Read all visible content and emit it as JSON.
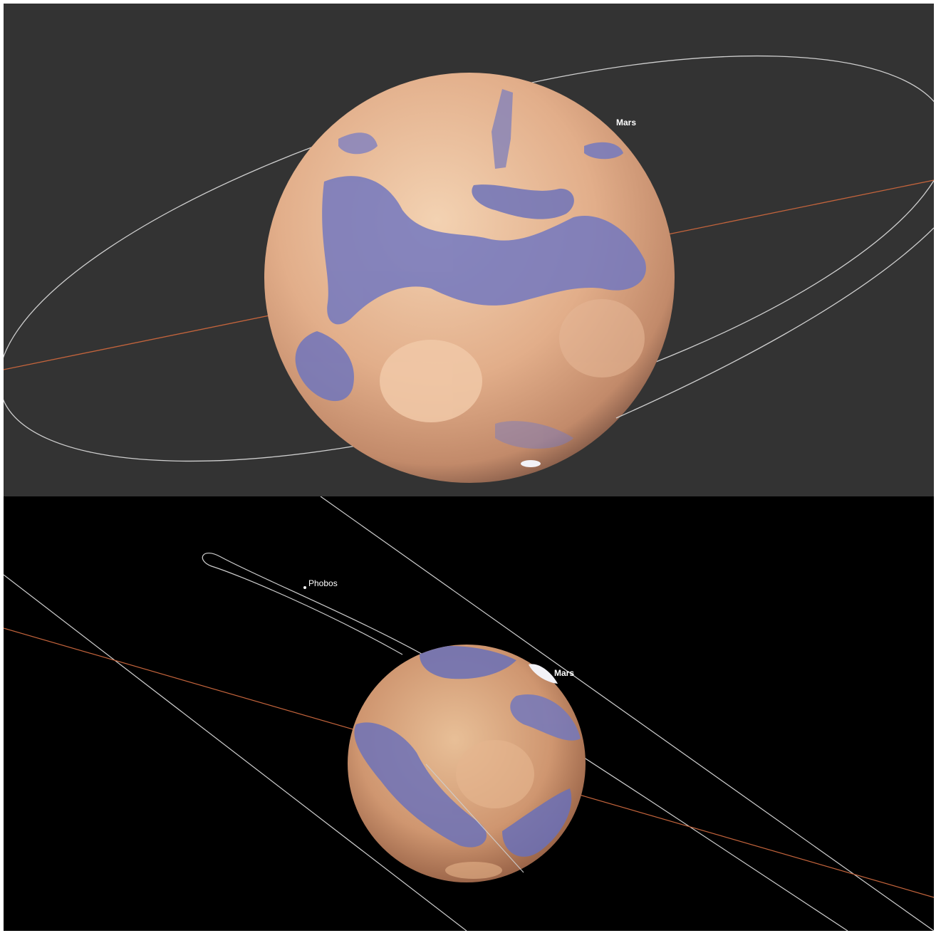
{
  "top_view": {
    "background": "#333333",
    "planet_label": "Mars"
  },
  "bottom_view": {
    "background": "#000000",
    "planet_label": "Mars",
    "moon_label": "Phobos"
  },
  "colors": {
    "orbit_line": "#cfcfcf",
    "axis_line": "#c4643c",
    "mars_light": "#efcba8",
    "mars_mid": "#d49a76",
    "mars_shadow": "#5a3a30",
    "mars_dark_region": "#6a6fb8",
    "polar_ice": "#f2f2f7"
  }
}
